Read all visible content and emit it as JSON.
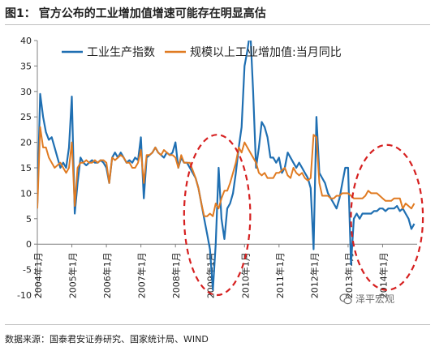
{
  "header": {
    "figure_label": "图1：",
    "caption": "官方公布的工业增加值增速可能存在明显高估"
  },
  "footer": {
    "source": "数据来源：国泰君安证券研究、国家统计局、WIND"
  },
  "watermark": {
    "text": "泽平宏观",
    "icon": "chat-bubble-icon"
  },
  "colors": {
    "industrial": "#1f6fb2",
    "value_added": "#e07b22",
    "ellipse": "#d62020",
    "axis": "#808080",
    "text": "#222222"
  },
  "chart_data": {
    "type": "line",
    "title": "",
    "xlabel": "",
    "ylabel": "",
    "ylim": [
      -10,
      40
    ],
    "yticks": [
      -10,
      -5,
      0,
      5,
      10,
      15,
      20,
      25,
      30,
      35,
      40
    ],
    "xlim": [
      "2004-01",
      "2015-01"
    ],
    "xticks": [
      "2004年1月",
      "2005年1月",
      "2006年1月",
      "2007年1月",
      "2008年1月",
      "2009年1月",
      "2010年1月",
      "2011年1月",
      "2012年1月",
      "2013年1月",
      "2014年1月"
    ],
    "grid": false,
    "legend": "top",
    "annotations": [
      {
        "shape": "dashed-ellipse",
        "from": "2008-04",
        "to": "2010-03",
        "y_from": -10,
        "y_to": 21.5
      },
      {
        "shape": "dashed-ellipse",
        "from": "2013-02",
        "to": "2015-03",
        "y_from": -9,
        "y_to": 19.5
      }
    ],
    "series": [
      {
        "name": "工业生产指数",
        "color": "#1f6fb2",
        "points": [
          [
            "2004-01",
            8
          ],
          [
            "2004-02",
            29.5
          ],
          [
            "2004-03",
            25
          ],
          [
            "2004-04",
            22
          ],
          [
            "2004-05",
            20.5
          ],
          [
            "2004-06",
            21
          ],
          [
            "2004-07",
            19
          ],
          [
            "2004-08",
            17
          ],
          [
            "2004-09",
            15
          ],
          [
            "2004-10",
            16
          ],
          [
            "2004-11",
            15
          ],
          [
            "2004-12",
            19
          ],
          [
            "2005-01",
            29
          ],
          [
            "2005-02",
            6
          ],
          [
            "2005-03",
            12
          ],
          [
            "2005-04",
            17
          ],
          [
            "2005-05",
            16
          ],
          [
            "2005-06",
            15.5
          ],
          [
            "2005-07",
            16
          ],
          [
            "2005-08",
            16.5
          ],
          [
            "2005-09",
            16
          ],
          [
            "2005-10",
            16
          ],
          [
            "2005-11",
            16.5
          ],
          [
            "2005-12",
            16
          ],
          [
            "2006-01",
            15
          ],
          [
            "2006-02",
            12
          ],
          [
            "2006-03",
            17
          ],
          [
            "2006-04",
            18
          ],
          [
            "2006-05",
            17
          ],
          [
            "2006-06",
            18
          ],
          [
            "2006-07",
            17
          ],
          [
            "2006-08",
            16
          ],
          [
            "2006-09",
            16.5
          ],
          [
            "2006-10",
            16
          ],
          [
            "2006-11",
            17
          ],
          [
            "2006-12",
            16.5
          ],
          [
            "2007-01",
            21
          ],
          [
            "2007-02",
            9
          ],
          [
            "2007-03",
            17
          ],
          [
            "2007-04",
            17.5
          ],
          [
            "2007-05",
            18
          ],
          [
            "2007-06",
            19
          ],
          [
            "2007-07",
            18
          ],
          [
            "2007-08",
            17.5
          ],
          [
            "2007-09",
            17
          ],
          [
            "2007-10",
            18
          ],
          [
            "2007-11",
            17.5
          ],
          [
            "2007-12",
            18
          ],
          [
            "2008-01",
            20
          ],
          [
            "2008-02",
            15
          ],
          [
            "2008-03",
            17
          ],
          [
            "2008-04",
            16
          ],
          [
            "2008-05",
            16
          ],
          [
            "2008-06",
            15
          ],
          [
            "2008-07",
            14
          ],
          [
            "2008-08",
            13
          ],
          [
            "2008-09",
            11
          ],
          [
            "2008-10",
            8
          ],
          [
            "2008-11",
            5
          ],
          [
            "2008-12",
            2
          ],
          [
            "2009-01",
            -1
          ],
          [
            "2009-02",
            -9
          ],
          [
            "2009-03",
            0
          ],
          [
            "2009-04",
            15
          ],
          [
            "2009-05",
            5
          ],
          [
            "2009-06",
            1
          ],
          [
            "2009-07",
            7
          ],
          [
            "2009-08",
            8
          ],
          [
            "2009-09",
            10
          ],
          [
            "2009-10",
            14
          ],
          [
            "2009-11",
            19
          ],
          [
            "2009-12",
            23
          ],
          [
            "2010-01",
            35
          ],
          [
            "2010-02",
            38
          ],
          [
            "2010-03",
            42
          ],
          [
            "2010-04",
            30
          ],
          [
            "2010-05",
            15
          ],
          [
            "2010-06",
            19
          ],
          [
            "2010-07",
            24
          ],
          [
            "2010-08",
            23
          ],
          [
            "2010-09",
            21
          ],
          [
            "2010-10",
            17
          ],
          [
            "2010-11",
            17
          ],
          [
            "2010-12",
            16
          ],
          [
            "2011-01",
            17
          ],
          [
            "2011-02",
            14
          ],
          [
            "2011-03",
            15
          ],
          [
            "2011-04",
            18
          ],
          [
            "2011-05",
            17
          ],
          [
            "2011-06",
            16
          ],
          [
            "2011-07",
            15
          ],
          [
            "2011-08",
            16
          ],
          [
            "2011-09",
            15
          ],
          [
            "2011-10",
            14
          ],
          [
            "2011-11",
            13
          ],
          [
            "2011-12",
            11
          ],
          [
            "2012-01",
            -1
          ],
          [
            "2012-02",
            25
          ],
          [
            "2012-03",
            14
          ],
          [
            "2012-04",
            13
          ],
          [
            "2012-05",
            12
          ],
          [
            "2012-06",
            10
          ],
          [
            "2012-07",
            9
          ],
          [
            "2012-08",
            8
          ],
          [
            "2012-09",
            7
          ],
          [
            "2012-10",
            9
          ],
          [
            "2012-11",
            12
          ],
          [
            "2012-12",
            15
          ],
          [
            "2013-01",
            15
          ],
          [
            "2013-02",
            -4
          ],
          [
            "2013-03",
            5
          ],
          [
            "2013-04",
            6
          ],
          [
            "2013-05",
            5
          ],
          [
            "2013-06",
            6
          ],
          [
            "2013-07",
            6
          ],
          [
            "2013-08",
            6
          ],
          [
            "2013-09",
            6
          ],
          [
            "2013-10",
            6.5
          ],
          [
            "2013-11",
            6.5
          ],
          [
            "2013-12",
            7
          ],
          [
            "2014-01",
            7
          ],
          [
            "2014-02",
            6.5
          ],
          [
            "2014-03",
            7
          ],
          [
            "2014-04",
            7
          ],
          [
            "2014-05",
            7
          ],
          [
            "2014-06",
            7.5
          ],
          [
            "2014-07",
            6.5
          ],
          [
            "2014-08",
            7
          ],
          [
            "2014-09",
            6
          ],
          [
            "2014-10",
            5
          ],
          [
            "2014-11",
            3
          ],
          [
            "2014-12",
            4
          ]
        ]
      },
      {
        "name": "规模以上工业增加值:当月同比",
        "color": "#e07b22",
        "points": [
          [
            "2004-01",
            7
          ],
          [
            "2004-02",
            23
          ],
          [
            "2004-03",
            19
          ],
          [
            "2004-04",
            19
          ],
          [
            "2004-05",
            17
          ],
          [
            "2004-06",
            16
          ],
          [
            "2004-07",
            15
          ],
          [
            "2004-08",
            15.5
          ],
          [
            "2004-09",
            16
          ],
          [
            "2004-10",
            15
          ],
          [
            "2004-11",
            14
          ],
          [
            "2004-12",
            15
          ],
          [
            "2005-01",
            20
          ],
          [
            "2005-02",
            7.5
          ],
          [
            "2005-03",
            15
          ],
          [
            "2005-04",
            16
          ],
          [
            "2005-05",
            16
          ],
          [
            "2005-06",
            16.5
          ],
          [
            "2005-07",
            16
          ],
          [
            "2005-08",
            16
          ],
          [
            "2005-09",
            16.5
          ],
          [
            "2005-10",
            16
          ],
          [
            "2005-11",
            16.5
          ],
          [
            "2005-12",
            16.5
          ],
          [
            "2006-01",
            16
          ],
          [
            "2006-02",
            12
          ],
          [
            "2006-03",
            17
          ],
          [
            "2006-04",
            16.5
          ],
          [
            "2006-05",
            17
          ],
          [
            "2006-06",
            17.5
          ],
          [
            "2006-07",
            17
          ],
          [
            "2006-08",
            16
          ],
          [
            "2006-09",
            16
          ],
          [
            "2006-10",
            15
          ],
          [
            "2006-11",
            15
          ],
          [
            "2006-12",
            16
          ],
          [
            "2007-01",
            18.5
          ],
          [
            "2007-02",
            12
          ],
          [
            "2007-03",
            17.5
          ],
          [
            "2007-04",
            17.5
          ],
          [
            "2007-05",
            18
          ],
          [
            "2007-06",
            19
          ],
          [
            "2007-07",
            18
          ],
          [
            "2007-08",
            17.5
          ],
          [
            "2007-09",
            18.5
          ],
          [
            "2007-10",
            18
          ],
          [
            "2007-11",
            17.5
          ],
          [
            "2007-12",
            17.5
          ],
          [
            "2008-01",
            17
          ],
          [
            "2008-02",
            15
          ],
          [
            "2008-03",
            17.5
          ],
          [
            "2008-04",
            16
          ],
          [
            "2008-05",
            16
          ],
          [
            "2008-06",
            16
          ],
          [
            "2008-07",
            14.5
          ],
          [
            "2008-08",
            13
          ],
          [
            "2008-09",
            11
          ],
          [
            "2008-10",
            8
          ],
          [
            "2008-11",
            5.5
          ],
          [
            "2008-12",
            5.5
          ],
          [
            "2009-01",
            6
          ],
          [
            "2009-02",
            5.5
          ],
          [
            "2009-03",
            8
          ],
          [
            "2009-04",
            7
          ],
          [
            "2009-05",
            9
          ],
          [
            "2009-06",
            10.5
          ],
          [
            "2009-07",
            10.5
          ],
          [
            "2009-08",
            12
          ],
          [
            "2009-09",
            14
          ],
          [
            "2009-10",
            16
          ],
          [
            "2009-11",
            19
          ],
          [
            "2009-12",
            18
          ],
          [
            "2010-01",
            20
          ],
          [
            "2010-02",
            19
          ],
          [
            "2010-03",
            18
          ],
          [
            "2010-04",
            17
          ],
          [
            "2010-05",
            16
          ],
          [
            "2010-06",
            14
          ],
          [
            "2010-07",
            13.5
          ],
          [
            "2010-08",
            14
          ],
          [
            "2010-09",
            13
          ],
          [
            "2010-10",
            13
          ],
          [
            "2010-11",
            13
          ],
          [
            "2010-12",
            14
          ],
          [
            "2011-01",
            14
          ],
          [
            "2011-02",
            14.5
          ],
          [
            "2011-03",
            15
          ],
          [
            "2011-04",
            13.5
          ],
          [
            "2011-05",
            13
          ],
          [
            "2011-06",
            15
          ],
          [
            "2011-07",
            14
          ],
          [
            "2011-08",
            13.5
          ],
          [
            "2011-09",
            14
          ],
          [
            "2011-10",
            13
          ],
          [
            "2011-11",
            12.5
          ],
          [
            "2011-12",
            13
          ],
          [
            "2012-01",
            21.5
          ],
          [
            "2012-02",
            21
          ],
          [
            "2012-03",
            12
          ],
          [
            "2012-04",
            9.5
          ],
          [
            "2012-05",
            9.5
          ],
          [
            "2012-06",
            9.5
          ],
          [
            "2012-07",
            9
          ],
          [
            "2012-08",
            9
          ],
          [
            "2012-09",
            9.5
          ],
          [
            "2012-10",
            9.5
          ],
          [
            "2012-11",
            10
          ],
          [
            "2012-12",
            10
          ],
          [
            "2013-01",
            10
          ],
          [
            "2013-02",
            9.5
          ],
          [
            "2013-03",
            9
          ],
          [
            "2013-04",
            9
          ],
          [
            "2013-05",
            9
          ],
          [
            "2013-06",
            9
          ],
          [
            "2013-07",
            9.5
          ],
          [
            "2013-08",
            10.5
          ],
          [
            "2013-09",
            10
          ],
          [
            "2013-10",
            10
          ],
          [
            "2013-11",
            10
          ],
          [
            "2013-12",
            9.5
          ],
          [
            "2014-01",
            9
          ],
          [
            "2014-02",
            8.5
          ],
          [
            "2014-03",
            8.5
          ],
          [
            "2014-04",
            8.5
          ],
          [
            "2014-05",
            9
          ],
          [
            "2014-06",
            9
          ],
          [
            "2014-07",
            9
          ],
          [
            "2014-08",
            7
          ],
          [
            "2014-09",
            8
          ],
          [
            "2014-10",
            7.5
          ],
          [
            "2014-11",
            7
          ],
          [
            "2014-12",
            8
          ]
        ]
      }
    ]
  }
}
